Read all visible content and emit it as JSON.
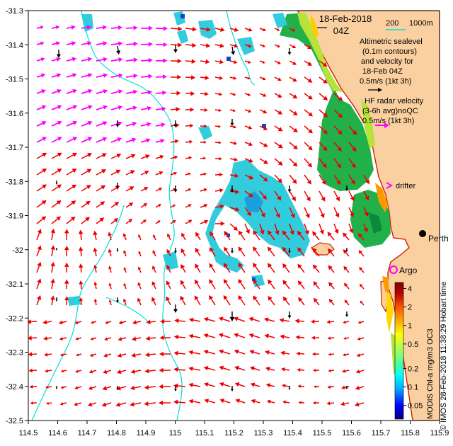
{
  "map": {
    "date_title": "18-Feb-2018",
    "time_title": "04Z",
    "depth_legend": {
      "value_1": "200",
      "value_2": "1000m"
    },
    "altimetry_legend": {
      "lines": [
        "Altimetric sealevel",
        "(0.1m contours)",
        "and velocity for",
        "18-Feb 04Z"
      ],
      "speed_label": "0.5m/s (1kt 3h)"
    },
    "hf_radar_legend": {
      "lines": [
        "HF radar velocity",
        "(3-6h avg)noQC"
      ],
      "speed_label": "0.5m/s (1kt 3h)"
    },
    "drifter_label": "drifter",
    "argo_label": "Argo",
    "city_label": "Perth",
    "credit_right": "© IMOS 28-Feb-2018 11:38:29 Hobart time",
    "colorbar": {
      "title": "MODIS Chl-a mg/m3 OC3",
      "tick_labels": [
        "4",
        "2",
        "1",
        "0.5",
        "0.2",
        "0.1",
        "0.05"
      ],
      "tick_values": [
        4,
        2,
        1,
        0.5,
        0.2,
        0.1,
        0.05
      ],
      "range": [
        0.03,
        5
      ],
      "scale": "log",
      "colors": [
        "#00007f",
        "#0000ff",
        "#00aaff",
        "#00ffff",
        "#55ff99",
        "#aaff55",
        "#ffff00",
        "#ffaa00",
        "#ff5500",
        "#bb0000",
        "#7f0000"
      ]
    },
    "axes": {
      "x_ticks": [
        "114.5",
        "114.6",
        "114.7",
        "114.8",
        "114.9",
        "115",
        "115.1",
        "115.2",
        "115.3",
        "115.4",
        "115.5",
        "115.6",
        "115.7",
        "115.8",
        "115.9"
      ],
      "y_ticks": [
        "-31.3",
        "-31.4",
        "-31.5",
        "-31.6",
        "-31.7",
        "-31.8",
        "-31.9",
        "-32",
        "-32.1",
        "-32.2",
        "-32.3",
        "-32.4",
        "-32.5"
      ],
      "lon_range": [
        114.5,
        115.9
      ],
      "lat_range": [
        -32.5,
        -31.3
      ]
    },
    "colors": {
      "land": "#fbd0a0",
      "coastline": "#cc2200",
      "isobath": "#00e0e0",
      "altimetry_arrow": "#ee0000",
      "hf_arrow": "#ff00ff",
      "drifter_arrow": "#000000",
      "argo_marker": "#ff00ff"
    }
  }
}
